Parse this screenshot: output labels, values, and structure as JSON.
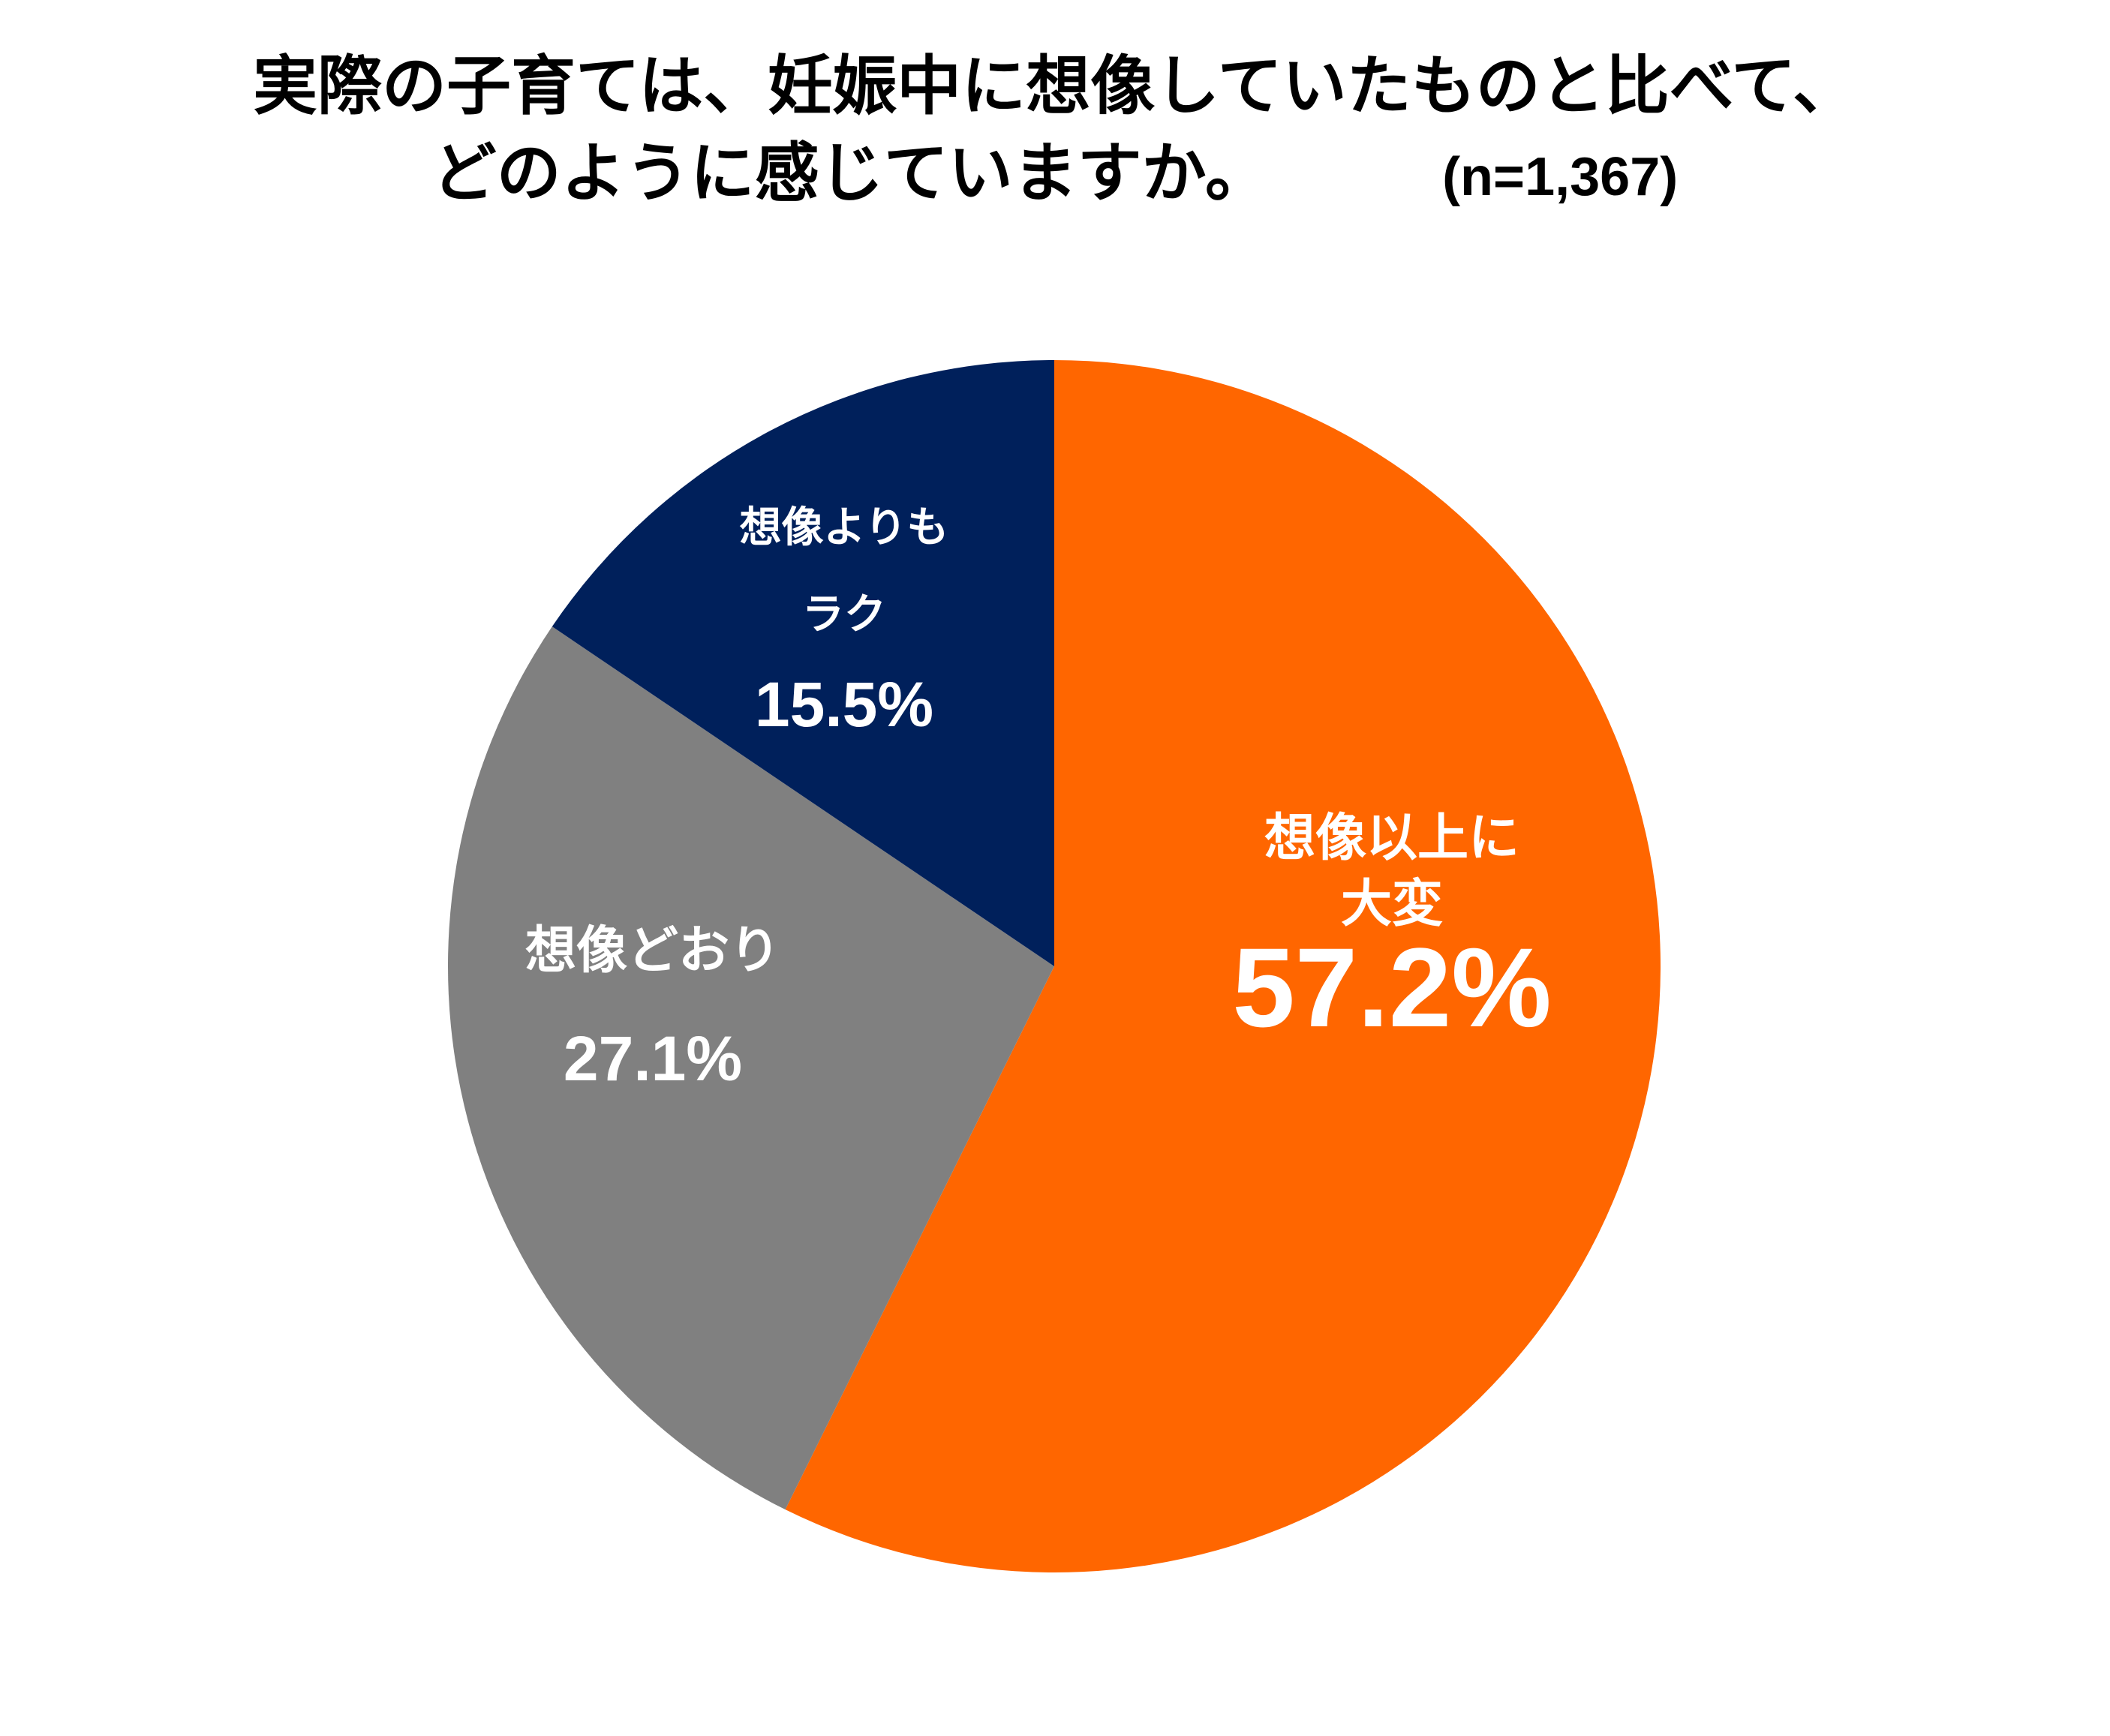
{
  "title_line1": "実際の子育ては、妊娠中に想像していたものと比べて、",
  "title_line2": "どのように感じていますか。",
  "sample_size": "(n=1,367)",
  "chart_data": {
    "type": "pie",
    "start_angle_deg": 0,
    "direction": "clockwise",
    "slices": [
      {
        "label_lines": [
          "想像以上に",
          "大変"
        ],
        "value": 57.2,
        "value_label": "57.2%",
        "color": "#FF6600"
      },
      {
        "label_lines": [
          "想像どおり"
        ],
        "value": 27.1,
        "value_label": "27.1%",
        "color": "#808080"
      },
      {
        "label_lines": [
          "想像よりも",
          "ラク"
        ],
        "value": 15.5,
        "value_label": "15.5%",
        "color": "#00205B"
      }
    ]
  }
}
